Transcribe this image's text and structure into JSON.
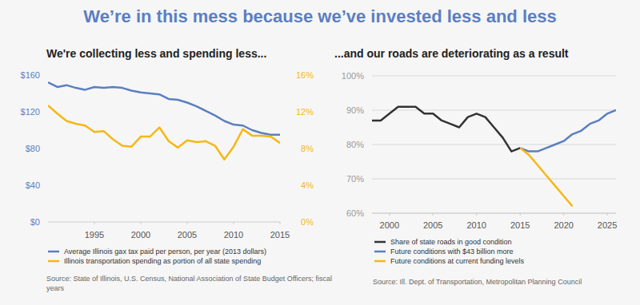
{
  "title": "We’re in this mess because we’ve invested less and less",
  "chart_data": [
    {
      "type": "line",
      "title": "We're collecting less and spending less...",
      "source": "Source: State of Illinois, U.S. Census, National Association of State Budget Officers; fiscal years",
      "x": [
        1990,
        1991,
        1992,
        1993,
        1994,
        1995,
        1996,
        1997,
        1998,
        1999,
        2000,
        2001,
        2002,
        2003,
        2004,
        2005,
        2006,
        2007,
        2008,
        2009,
        2010,
        2011,
        2012,
        2013,
        2014,
        2015
      ],
      "series": [
        {
          "name": "Average Illinois gax tax paid per person, per year (2013 dollars)",
          "color": "#5b7fc1",
          "values": [
            152,
            147,
            149,
            146,
            144,
            147,
            146,
            147,
            146,
            143,
            141,
            140,
            139,
            134,
            133,
            130,
            126,
            121,
            116,
            110,
            106,
            105,
            100,
            97,
            95,
            95
          ]
        },
        {
          "name": "Illinois transportation spending as portion of all state spending",
          "color": "#f5b816",
          "axis": "y2",
          "values": [
            12.7,
            11.8,
            11.0,
            10.7,
            10.5,
            9.8,
            9.9,
            9.0,
            8.3,
            8.2,
            9.3,
            9.3,
            10.3,
            8.8,
            8.1,
            8.9,
            8.7,
            8.8,
            8.3,
            6.8,
            8.2,
            10.1,
            9.4,
            9.4,
            9.3,
            8.6
          ]
        }
      ],
      "xlim": [
        1990,
        2015
      ],
      "xticks": [
        1995,
        2000,
        2005,
        2010,
        2015
      ],
      "ylim": [
        0,
        160
      ],
      "yticks": [
        {
          "value": 0,
          "label": "$0"
        },
        {
          "value": 40,
          "label": "$40"
        },
        {
          "value": 80,
          "label": "$80"
        },
        {
          "value": 120,
          "label": "$120"
        },
        {
          "value": 160,
          "label": "$160"
        }
      ],
      "y2lim": [
        0,
        16
      ],
      "y2ticks": [
        {
          "value": 0,
          "label": "0%"
        },
        {
          "value": 4,
          "label": "4%"
        },
        {
          "value": 8,
          "label": "8%"
        },
        {
          "value": 12,
          "label": "12%"
        },
        {
          "value": 16,
          "label": "16%"
        }
      ],
      "grid": false,
      "legend": "bottom"
    },
    {
      "type": "line",
      "title": "...and our roads are deteriorating as a result",
      "source": "Source: Ill. Dept. of Transportation, Metropolitan Planning Council",
      "x": [
        1998,
        1999,
        2000,
        2001,
        2002,
        2003,
        2004,
        2005,
        2006,
        2007,
        2008,
        2009,
        2010,
        2011,
        2012,
        2013,
        2014,
        2015,
        2016,
        2017,
        2018,
        2019,
        2020,
        2021,
        2022,
        2023,
        2024,
        2025,
        2026
      ],
      "series": [
        {
          "name": "Share of state roads in good condition",
          "color": "#333333",
          "values": [
            87,
            87,
            89,
            91,
            91,
            91,
            89,
            89,
            87,
            86,
            85,
            88,
            89,
            88,
            85,
            82,
            78,
            79,
            null,
            null,
            null,
            null,
            null,
            null,
            null,
            null,
            null,
            null,
            null
          ]
        },
        {
          "name": "Future conditions with $43 billion more",
          "color": "#5b7fc1",
          "values": [
            null,
            null,
            null,
            null,
            null,
            null,
            null,
            null,
            null,
            null,
            null,
            null,
            null,
            null,
            null,
            null,
            null,
            79,
            78,
            78,
            79,
            80,
            81,
            83,
            84,
            86,
            87,
            89,
            90
          ]
        },
        {
          "name": "Future conditions at current funding levels",
          "color": "#f5b816",
          "values": [
            null,
            null,
            null,
            null,
            null,
            null,
            null,
            null,
            null,
            null,
            null,
            null,
            null,
            null,
            null,
            null,
            null,
            79,
            77,
            74,
            71,
            68,
            65,
            62,
            null,
            null,
            null,
            null,
            null
          ]
        }
      ],
      "xlim": [
        1998,
        2026
      ],
      "xticks": [
        2000,
        2005,
        2010,
        2015,
        2020,
        2025
      ],
      "ylim": [
        60,
        100
      ],
      "yticks": [
        {
          "value": 60,
          "label": "60%"
        },
        {
          "value": 70,
          "label": "70%"
        },
        {
          "value": 80,
          "label": "80%"
        },
        {
          "value": 90,
          "label": "90%"
        },
        {
          "value": 100,
          "label": "100%"
        }
      ],
      "grid": true,
      "legend": "bottom"
    }
  ]
}
